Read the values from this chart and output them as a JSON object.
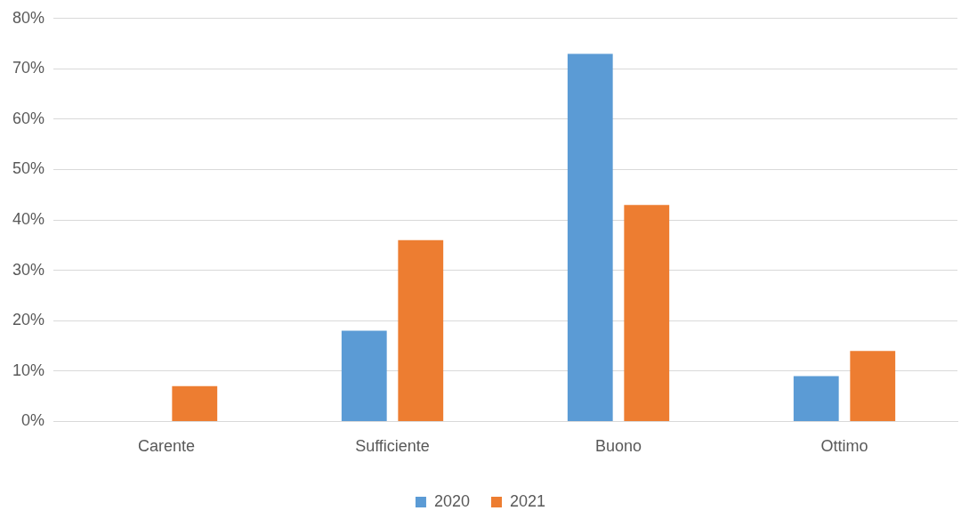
{
  "chart_data": {
    "type": "bar",
    "categories": [
      "Carente",
      "Sufficiente",
      "Buono",
      "Ottimo"
    ],
    "series": [
      {
        "name": "2020",
        "color": "#5b9bd5",
        "values": [
          0,
          18,
          73,
          9
        ]
      },
      {
        "name": "2021",
        "color": "#ed7d31",
        "values": [
          7,
          36,
          43,
          14
        ]
      }
    ],
    "ylim": [
      0,
      80
    ],
    "yticks": [
      {
        "value": 0,
        "label": "0%"
      },
      {
        "value": 10,
        "label": "10%"
      },
      {
        "value": 20,
        "label": "20%"
      },
      {
        "value": 30,
        "label": "30%"
      },
      {
        "value": 40,
        "label": "40%"
      },
      {
        "value": 50,
        "label": "50%"
      },
      {
        "value": 60,
        "label": "60%"
      },
      {
        "value": 70,
        "label": "70%"
      },
      {
        "value": 80,
        "label": "80%"
      }
    ],
    "grid": "y",
    "legend": "bottom"
  }
}
